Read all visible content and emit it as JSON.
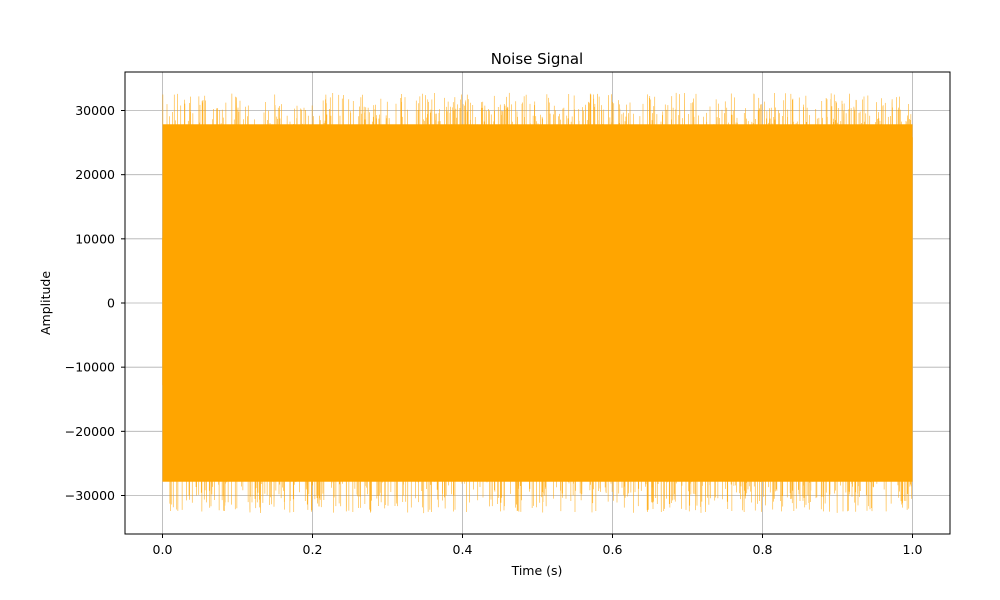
{
  "chart_data": {
    "type": "line",
    "title": "Noise Signal",
    "xlabel": "Time (s)",
    "ylabel": "Amplitude",
    "xlim": [
      -0.05,
      1.05
    ],
    "ylim": [
      -36000,
      36000
    ],
    "x_ticks": [
      0.0,
      0.2,
      0.4,
      0.6,
      0.8,
      1.0
    ],
    "x_tick_labels": [
      "0.0",
      "0.2",
      "0.4",
      "0.6",
      "0.8",
      "1.0"
    ],
    "y_ticks": [
      -30000,
      -20000,
      -10000,
      0,
      10000,
      20000,
      30000
    ],
    "y_tick_labels": [
      "−30000",
      "−20000",
      "−10000",
      "0",
      "10000",
      "20000",
      "30000"
    ],
    "grid": true,
    "series": [
      {
        "color": "#FFA500",
        "x_range": [
          0.0,
          1.0
        ],
        "y_range": [
          -32768,
          32767
        ],
        "description": ""
      }
    ]
  }
}
